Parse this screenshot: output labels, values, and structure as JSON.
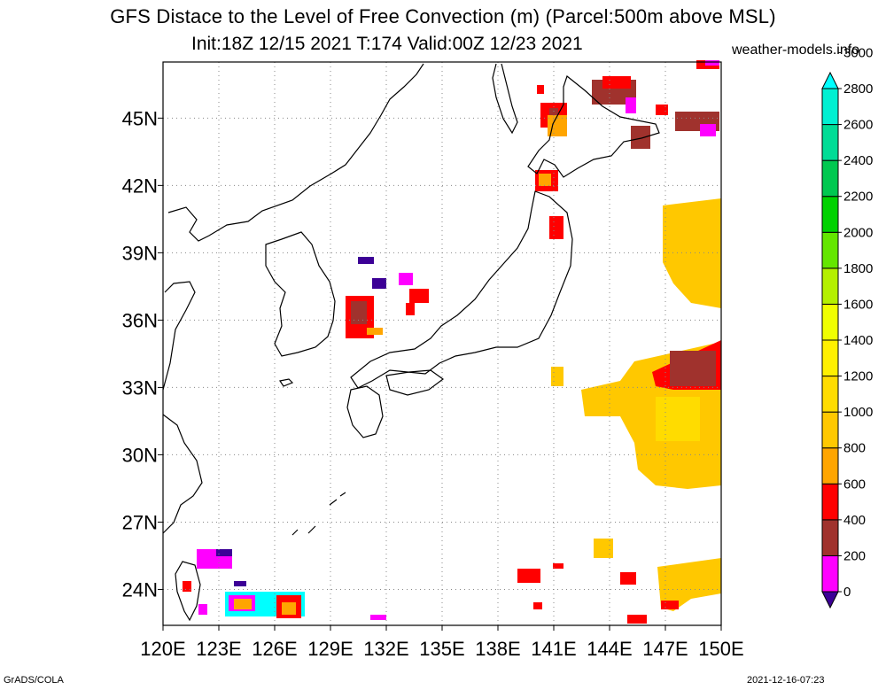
{
  "title": {
    "line1": "GFS Distace to the Level of Free Convection (m) (Parcel:500m above MSL)",
    "line2": "Init:18Z 12/15 2021 T:174 Valid:00Z 12/23 2021",
    "site": "weather-models.info"
  },
  "footer": {
    "left": "GrADS/COLA",
    "right": "2021-12-16-07:23"
  },
  "axes": {
    "lon_labels": [
      "120E",
      "123E",
      "126E",
      "129E",
      "132E",
      "135E",
      "138E",
      "141E",
      "144E",
      "147E",
      "150E"
    ],
    "lat_labels": [
      "24N",
      "27N",
      "30N",
      "33N",
      "36N",
      "39N",
      "42N",
      "45N"
    ],
    "lon_range": [
      120,
      150
    ],
    "lat_range": [
      22.4,
      47.5
    ]
  },
  "colorbar": {
    "labels": [
      "0",
      "200",
      "400",
      "600",
      "800",
      "1000",
      "1200",
      "1400",
      "1600",
      "1800",
      "2000",
      "2200",
      "2400",
      "2600",
      "2800",
      "3000"
    ],
    "colors": [
      "#3c0096",
      "#ff00ff",
      "#a0322d",
      "#ff0000",
      "#ffa500",
      "#ffc800",
      "#ffdc00",
      "#fff000",
      "#f0ff00",
      "#b4f000",
      "#64e600",
      "#00d200",
      "#00c850",
      "#00dc96",
      "#00f0d2",
      "#00ffff"
    ]
  },
  "field_regions": [
    {
      "name": "hokkaido-north",
      "color": "#a0322d"
    },
    {
      "name": "east-pacific-band",
      "color": "#ffc800"
    },
    {
      "name": "korea-core",
      "color": "#ff0000"
    },
    {
      "name": "taiwan-east",
      "color": "#00ffff"
    }
  ]
}
